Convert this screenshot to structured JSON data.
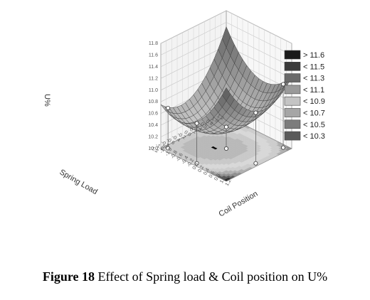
{
  "caption": {
    "label": "Figure 18",
    "text": "Effect of Spring load & Coil position on U%"
  },
  "chart_data": {
    "type": "surface3d",
    "zlabel": "U%",
    "xlabel": "Spring Load",
    "ylabel": "Coil Position",
    "zlim": [
      10.0,
      11.8
    ],
    "z_ticks": [
      "10.0",
      "10.2",
      "10.4",
      "10.6",
      "10.8",
      "11.0",
      "11.2",
      "11.4",
      "11.6",
      "11.8"
    ],
    "x_ticks": [
      "1.2",
      "1.0",
      "0.8",
      "0.6",
      "0.4",
      "0.2",
      "0.0",
      "-0.2",
      "-0.4",
      "-0.6",
      "-0.8",
      "-1.0",
      "-1.2"
    ],
    "y_ticks": [
      "-1.2",
      "-1.0",
      "-0.8",
      "-0.6",
      "-0.4",
      "-0.2",
      "0.0",
      "0.2",
      "0.4",
      "0.6",
      "0.8",
      "1.0",
      "1.2"
    ],
    "legend": [
      {
        "label": "> 11.6",
        "color": "#1a1a1a"
      },
      {
        "label": "< 11.5",
        "color": "#3a3a3a"
      },
      {
        "label": "< 11.3",
        "color": "#6a6a6a"
      },
      {
        "label": "< 11.1",
        "color": "#9a9a9a"
      },
      {
        "label": "< 10.9",
        "color": "#c4c4c4"
      },
      {
        "label": "< 10.7",
        "color": "#a6a6a6"
      },
      {
        "label": "< 10.5",
        "color": "#7c7c7c"
      },
      {
        "label": "< 10.3",
        "color": "#5a5a5a"
      }
    ],
    "legend_position": "right",
    "surface_min": 10.3,
    "surface_max": 11.6
  }
}
